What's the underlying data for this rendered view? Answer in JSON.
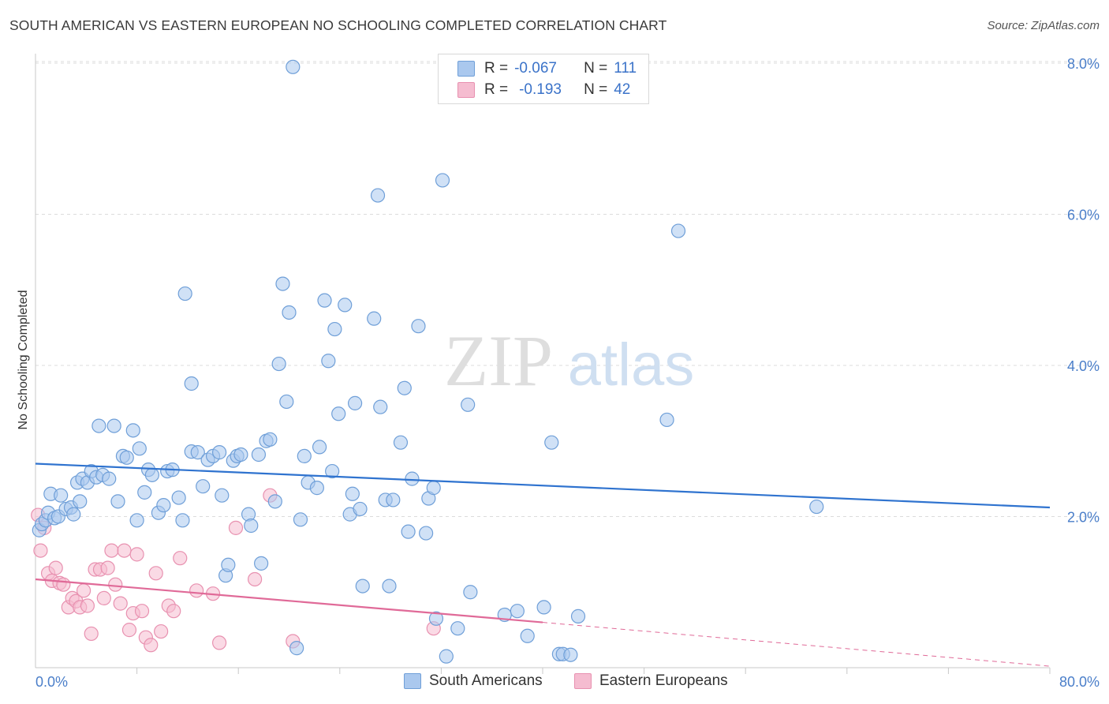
{
  "title": "SOUTH AMERICAN VS EASTERN EUROPEAN NO SCHOOLING COMPLETED CORRELATION CHART",
  "source": "Source: ZipAtlas.com",
  "watermark": {
    "zip": "ZIP",
    "atlas": "atlas"
  },
  "legend": {
    "rows": [
      {
        "r_label": "R =",
        "r_value": "-0.067",
        "n_label": "N =",
        "n_value": "111"
      },
      {
        "r_label": "R =",
        "r_value": "-0.193",
        "n_label": "N =",
        "n_value": "42"
      }
    ]
  },
  "bottom_legend": {
    "south": "South Americans",
    "eastern": "Eastern Europeans"
  },
  "colors": {
    "blue_fill": "#aac8ee",
    "blue_stroke": "#6f9fd8",
    "blue_line": "#2f73cf",
    "pink_fill": "#f5bcd0",
    "pink_stroke": "#e891b0",
    "pink_line": "#e06a98",
    "grid": "#dcdcdc",
    "tick_text": "#4a7ec9"
  },
  "chart_data": {
    "type": "scatter",
    "title": "SOUTH AMERICAN VS EASTERN EUROPEAN NO SCHOOLING COMPLETED CORRELATION CHART",
    "xlabel": "",
    "ylabel": "No Schooling Completed",
    "xlim": [
      0,
      80
    ],
    "ylim": [
      0,
      8
    ],
    "x_tick_labels": [
      "0.0%",
      "80.0%"
    ],
    "y_ticks": [
      2,
      4,
      6,
      8
    ],
    "y_tick_labels": [
      "2.0%",
      "4.0%",
      "6.0%",
      "8.0%"
    ],
    "grid": true,
    "series": [
      {
        "name": "South Americans",
        "trend": {
          "x": [
            0,
            80
          ],
          "y": [
            2.7,
            2.12
          ]
        },
        "points": [
          [
            0.3,
            1.82
          ],
          [
            0.5,
            1.9
          ],
          [
            0.8,
            1.95
          ],
          [
            1.0,
            2.05
          ],
          [
            1.2,
            2.3
          ],
          [
            1.5,
            1.98
          ],
          [
            1.8,
            2.0
          ],
          [
            2.0,
            2.28
          ],
          [
            2.4,
            2.1
          ],
          [
            2.8,
            2.12
          ],
          [
            3.0,
            2.03
          ],
          [
            3.5,
            2.2
          ],
          [
            3.3,
            2.45
          ],
          [
            3.7,
            2.5
          ],
          [
            4.1,
            2.45
          ],
          [
            4.4,
            2.6
          ],
          [
            4.8,
            2.52
          ],
          [
            5.0,
            3.2
          ],
          [
            5.3,
            2.55
          ],
          [
            5.8,
            2.5
          ],
          [
            6.2,
            3.2
          ],
          [
            6.5,
            2.2
          ],
          [
            6.9,
            2.8
          ],
          [
            7.2,
            2.78
          ],
          [
            7.7,
            3.14
          ],
          [
            8.0,
            1.95
          ],
          [
            8.2,
            2.9
          ],
          [
            8.6,
            2.32
          ],
          [
            8.9,
            2.62
          ],
          [
            9.2,
            2.55
          ],
          [
            9.7,
            2.05
          ],
          [
            10.1,
            2.15
          ],
          [
            10.4,
            2.6
          ],
          [
            10.8,
            2.62
          ],
          [
            11.3,
            2.25
          ],
          [
            11.6,
            1.95
          ],
          [
            11.8,
            4.95
          ],
          [
            12.3,
            2.86
          ],
          [
            12.3,
            3.76
          ],
          [
            12.8,
            2.85
          ],
          [
            13.2,
            2.4
          ],
          [
            13.6,
            2.75
          ],
          [
            14.0,
            2.8
          ],
          [
            14.5,
            2.85
          ],
          [
            14.7,
            2.28
          ],
          [
            15.0,
            1.22
          ],
          [
            15.2,
            1.36
          ],
          [
            15.6,
            2.74
          ],
          [
            15.9,
            2.8
          ],
          [
            16.2,
            2.82
          ],
          [
            16.8,
            2.03
          ],
          [
            17.0,
            1.88
          ],
          [
            17.6,
            2.82
          ],
          [
            17.8,
            1.38
          ],
          [
            18.2,
            3.0
          ],
          [
            18.5,
            3.02
          ],
          [
            18.9,
            2.2
          ],
          [
            19.2,
            4.02
          ],
          [
            19.5,
            5.08
          ],
          [
            19.8,
            3.52
          ],
          [
            20.0,
            4.7
          ],
          [
            20.3,
            7.95
          ],
          [
            20.6,
            0.26
          ],
          [
            20.9,
            1.96
          ],
          [
            21.2,
            2.8
          ],
          [
            21.5,
            2.45
          ],
          [
            22.2,
            2.38
          ],
          [
            22.4,
            2.92
          ],
          [
            22.8,
            4.86
          ],
          [
            23.1,
            4.06
          ],
          [
            23.4,
            2.6
          ],
          [
            23.6,
            4.48
          ],
          [
            23.9,
            3.36
          ],
          [
            24.4,
            4.8
          ],
          [
            24.8,
            2.03
          ],
          [
            25.0,
            2.3
          ],
          [
            25.2,
            3.5
          ],
          [
            25.6,
            2.1
          ],
          [
            25.8,
            1.08
          ],
          [
            26.7,
            4.62
          ],
          [
            27.0,
            6.25
          ],
          [
            27.2,
            3.45
          ],
          [
            27.6,
            2.22
          ],
          [
            27.9,
            1.08
          ],
          [
            28.2,
            2.22
          ],
          [
            28.8,
            2.98
          ],
          [
            29.1,
            3.7
          ],
          [
            29.4,
            1.8
          ],
          [
            29.7,
            2.5
          ],
          [
            30.2,
            4.52
          ],
          [
            30.8,
            1.78
          ],
          [
            31.0,
            2.24
          ],
          [
            31.4,
            2.38
          ],
          [
            31.6,
            0.65
          ],
          [
            32.1,
            6.45
          ],
          [
            32.4,
            0.15
          ],
          [
            33.3,
            0.52
          ],
          [
            34.1,
            3.48
          ],
          [
            34.3,
            1.0
          ],
          [
            37.0,
            0.7
          ],
          [
            38.0,
            0.75
          ],
          [
            38.8,
            0.42
          ],
          [
            40.1,
            0.8
          ],
          [
            40.7,
            2.98
          ],
          [
            41.3,
            0.18
          ],
          [
            41.6,
            0.18
          ],
          [
            42.2,
            0.17
          ],
          [
            42.8,
            0.68
          ],
          [
            49.8,
            3.28
          ],
          [
            50.7,
            5.78
          ],
          [
            61.6,
            2.13
          ]
        ]
      },
      {
        "name": "Eastern Europeans",
        "trend": {
          "x": [
            0,
            40
          ],
          "y": [
            1.17,
            0.6
          ],
          "dashed_to": [
            80,
            0.02
          ]
        },
        "points": [
          [
            0.2,
            2.02
          ],
          [
            0.4,
            1.55
          ],
          [
            0.7,
            1.85
          ],
          [
            1.0,
            1.25
          ],
          [
            1.3,
            1.15
          ],
          [
            1.6,
            1.32
          ],
          [
            1.9,
            1.12
          ],
          [
            2.2,
            1.1
          ],
          [
            2.6,
            0.8
          ],
          [
            2.9,
            0.92
          ],
          [
            3.2,
            0.88
          ],
          [
            3.5,
            0.8
          ],
          [
            3.8,
            1.02
          ],
          [
            4.1,
            0.82
          ],
          [
            4.4,
            0.45
          ],
          [
            4.7,
            1.3
          ],
          [
            5.1,
            1.3
          ],
          [
            5.4,
            0.92
          ],
          [
            5.7,
            1.32
          ],
          [
            6.0,
            1.55
          ],
          [
            6.3,
            1.1
          ],
          [
            6.7,
            0.85
          ],
          [
            7.0,
            1.55
          ],
          [
            7.4,
            0.5
          ],
          [
            7.7,
            0.72
          ],
          [
            8.0,
            1.5
          ],
          [
            8.4,
            0.75
          ],
          [
            8.7,
            0.4
          ],
          [
            9.1,
            0.3
          ],
          [
            9.5,
            1.25
          ],
          [
            9.9,
            0.48
          ],
          [
            10.5,
            0.82
          ],
          [
            10.9,
            0.75
          ],
          [
            11.4,
            1.45
          ],
          [
            12.7,
            1.02
          ],
          [
            14.0,
            0.98
          ],
          [
            14.5,
            0.33
          ],
          [
            15.8,
            1.85
          ],
          [
            17.3,
            1.17
          ],
          [
            18.5,
            2.28
          ],
          [
            20.3,
            0.35
          ],
          [
            31.4,
            0.52
          ]
        ]
      }
    ]
  }
}
